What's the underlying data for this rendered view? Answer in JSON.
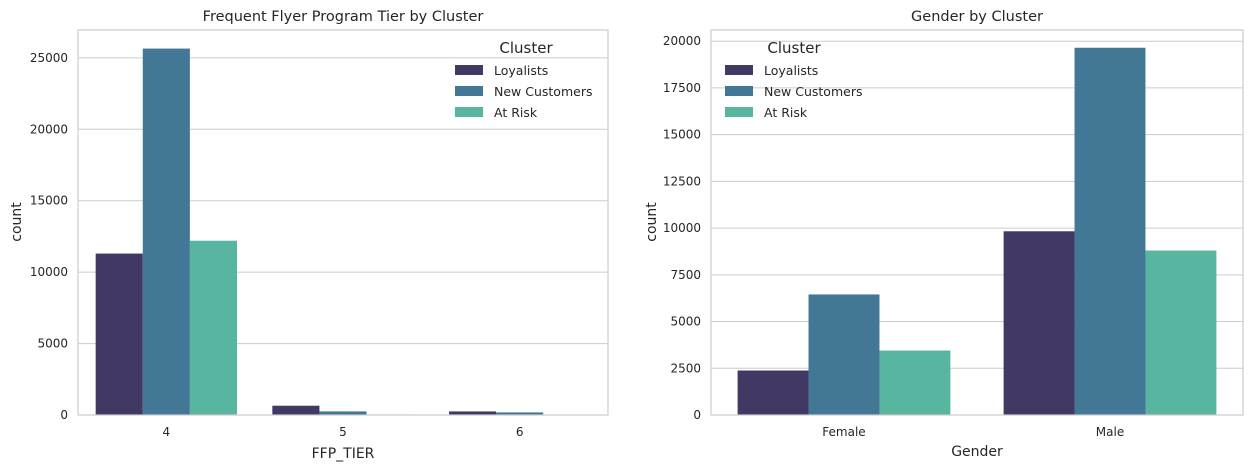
{
  "colors": {
    "series": [
      "#413963",
      "#427895",
      "#57b5a0"
    ],
    "grid": "#cccccc",
    "frame": "#cccccc"
  },
  "chart_data": [
    {
      "type": "bar",
      "title": "Frequent Flyer Program Tier by Cluster",
      "xlabel": "FFP_TIER",
      "ylabel": "count",
      "categories": [
        "4",
        "5",
        "6"
      ],
      "series": [
        {
          "name": "Loyalists",
          "values": [
            11300,
            650,
            250
          ]
        },
        {
          "name": "New Customers",
          "values": [
            25650,
            250,
            180
          ]
        },
        {
          "name": "At Risk",
          "values": [
            12200,
            40,
            20
          ]
        }
      ],
      "ylim": [
        0,
        26950
      ],
      "yticks": [
        0,
        5000,
        10000,
        15000,
        20000,
        25000
      ],
      "grid": true,
      "legend": {
        "title": "Cluster",
        "position": "top-right"
      }
    },
    {
      "type": "bar",
      "title": "Gender by Cluster",
      "xlabel": "Gender",
      "ylabel": "count",
      "categories": [
        "Female",
        "Male"
      ],
      "series": [
        {
          "name": "Loyalists",
          "values": [
            2380,
            9830
          ]
        },
        {
          "name": "New Customers",
          "values": [
            6450,
            19650
          ]
        },
        {
          "name": "At Risk",
          "values": [
            3450,
            8800
          ]
        }
      ],
      "ylim": [
        0,
        20600
      ],
      "yticks": [
        0,
        2500,
        5000,
        7500,
        10000,
        12500,
        15000,
        17500,
        20000
      ],
      "grid": true,
      "legend": {
        "title": "Cluster",
        "position": "top-left"
      }
    }
  ]
}
